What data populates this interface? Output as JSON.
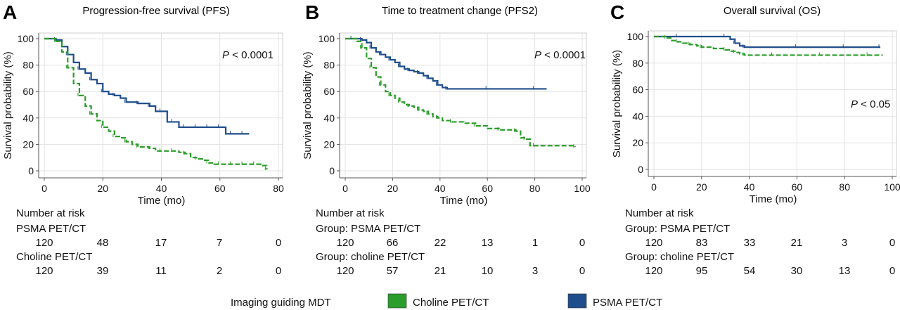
{
  "colors": {
    "choline": "#2a9d2a",
    "psma": "#1f4e8c"
  },
  "chart_data": [
    {
      "type": "line",
      "panel": "A",
      "title": "Progression-free survival (PFS)",
      "xlabel": "Time (mo)",
      "ylabel": "Survival probability (%)",
      "xlim": [
        0,
        80
      ],
      "ylim": [
        0,
        100
      ],
      "xticks": [
        0,
        20,
        40,
        60,
        80
      ],
      "yticks": [
        0,
        20,
        40,
        60,
        80,
        100
      ],
      "grid": true,
      "pvalue": {
        "p": "P",
        "rest": " < 0.0001"
      },
      "series": [
        {
          "name": "PSMA PET/CT",
          "key": "psma",
          "style": "solid",
          "x": [
            0,
            4,
            6,
            8,
            10,
            12,
            14,
            16,
            18,
            20,
            22,
            24,
            26,
            28,
            30,
            32,
            34,
            36,
            38,
            40,
            42,
            44,
            46,
            48,
            50,
            52,
            54,
            56,
            58,
            60,
            62,
            64,
            66,
            68,
            70
          ],
          "y": [
            100,
            99,
            94,
            88,
            82,
            77,
            74,
            69,
            66,
            60,
            58,
            57,
            55,
            52,
            52,
            51,
            51,
            49,
            45,
            45,
            37,
            37,
            33,
            33,
            33,
            33,
            33,
            33,
            33,
            33,
            28,
            28,
            28,
            28,
            28
          ]
        },
        {
          "name": "Choline PET/CT",
          "key": "choline",
          "style": "dashed",
          "x": [
            0,
            4,
            6,
            8,
            10,
            12,
            14,
            16,
            18,
            20,
            22,
            24,
            26,
            28,
            30,
            32,
            34,
            36,
            38,
            40,
            42,
            44,
            46,
            48,
            50,
            52,
            54,
            56,
            58,
            60,
            62,
            64,
            66,
            68,
            70,
            72,
            74,
            76
          ],
          "y": [
            100,
            98,
            90,
            78,
            66,
            57,
            49,
            43,
            38,
            33,
            30,
            26,
            25,
            22,
            20,
            18,
            18,
            17,
            15,
            15,
            15,
            15,
            14,
            13,
            10,
            9,
            8,
            6,
            5,
            5,
            5,
            5,
            5,
            5,
            5,
            5,
            4,
            1
          ]
        }
      ]
    },
    {
      "type": "line",
      "panel": "B",
      "title": "Time to treatment change (PFS2)",
      "xlabel": "Time (mo)",
      "ylabel": "Survival probability (%)",
      "xlim": [
        0,
        100
      ],
      "ylim": [
        0,
        100
      ],
      "xticks": [
        0,
        20,
        40,
        60,
        80,
        100
      ],
      "yticks": [
        0,
        20,
        40,
        60,
        80,
        100
      ],
      "grid": true,
      "pvalue": {
        "p": "P",
        "rest": " < 0.0001"
      },
      "series": [
        {
          "name": "PSMA PET/CT",
          "key": "psma",
          "style": "solid",
          "x": [
            0,
            3,
            5,
            7,
            9,
            11,
            13,
            15,
            17,
            19,
            21,
            23,
            25,
            27,
            29,
            31,
            33,
            35,
            37,
            39,
            41,
            43,
            50,
            60,
            70,
            80,
            85
          ],
          "y": [
            100,
            100,
            100,
            99,
            97,
            93,
            90,
            88,
            86,
            84,
            82,
            79,
            77,
            76,
            75,
            74,
            72,
            70,
            68,
            65,
            63,
            62,
            62,
            62,
            62,
            62,
            62
          ]
        },
        {
          "name": "Choline PET/CT",
          "key": "choline",
          "style": "dashed",
          "x": [
            0,
            3,
            5,
            7,
            9,
            11,
            13,
            15,
            17,
            19,
            21,
            23,
            25,
            27,
            29,
            31,
            33,
            35,
            37,
            39,
            41,
            45,
            50,
            55,
            60,
            65,
            70,
            72,
            74,
            76,
            78,
            80,
            90,
            97
          ],
          "y": [
            100,
            100,
            98,
            93,
            85,
            78,
            71,
            65,
            60,
            57,
            55,
            52,
            50,
            49,
            48,
            46,
            45,
            43,
            41,
            40,
            38,
            37,
            36,
            34,
            32,
            31,
            31,
            30,
            25,
            24,
            19,
            19,
            19,
            18
          ]
        }
      ]
    },
    {
      "type": "line",
      "panel": "C",
      "title": "Overall survival (OS)",
      "xlabel": "Time (mo)",
      "ylabel": "Survival probability (%)",
      "xlim": [
        0,
        100
      ],
      "ylim": [
        0,
        100
      ],
      "xticks": [
        0,
        20,
        40,
        60,
        80,
        100
      ],
      "yticks": [
        0,
        20,
        40,
        60,
        80,
        100
      ],
      "grid": true,
      "pvalue": {
        "p": "P",
        "rest": " < 0.05"
      },
      "series": [
        {
          "name": "PSMA PET/CT",
          "key": "psma",
          "style": "solid",
          "x": [
            0,
            10,
            20,
            30,
            32,
            34,
            36,
            38,
            50,
            60,
            70,
            80,
            90,
            95
          ],
          "y": [
            100,
            100,
            100,
            100,
            98,
            95,
            93,
            92,
            92,
            92,
            92,
            92,
            92,
            92
          ]
        },
        {
          "name": "Choline PET/CT",
          "key": "choline",
          "style": "dashed",
          "x": [
            0,
            5,
            7,
            10,
            12,
            15,
            18,
            20,
            25,
            30,
            32,
            34,
            36,
            38,
            40,
            50,
            60,
            70,
            80,
            90,
            96
          ],
          "y": [
            100,
            99,
            97,
            96,
            95,
            94,
            93,
            92,
            91,
            90,
            89,
            88,
            87,
            86,
            86,
            86,
            86,
            86,
            86,
            86,
            86
          ]
        }
      ]
    }
  ],
  "risk_tables": [
    {
      "heading": "Number at risk",
      "rows": [
        {
          "label": "PSMA PET/CT",
          "values": [
            "120",
            "48",
            "17",
            "7",
            "0"
          ]
        },
        {
          "label": "Choline PET/CT",
          "values": [
            "120",
            "39",
            "11",
            "2",
            "0"
          ]
        }
      ]
    },
    {
      "heading": "Number at risk",
      "rows": [
        {
          "label": "Group: PSMA PET/CT",
          "values": [
            "120",
            "66",
            "22",
            "13",
            "1",
            "0"
          ]
        },
        {
          "label": "Group: choline PET/CT",
          "values": [
            "120",
            "57",
            "21",
            "10",
            "3",
            "0"
          ]
        }
      ]
    },
    {
      "heading": "Number at risk",
      "rows": [
        {
          "label": "Group: PSMA PET/CT",
          "values": [
            "120",
            "83",
            "33",
            "21",
            "3",
            "0"
          ]
        },
        {
          "label": "Group: choline PET/CT",
          "values": [
            "120",
            "95",
            "54",
            "30",
            "13",
            "0"
          ]
        }
      ]
    }
  ],
  "legend": {
    "title": "Imaging guiding MDT",
    "items": [
      {
        "label": "Choline PET/CT",
        "key": "choline"
      },
      {
        "label": "PSMA PET/CT",
        "key": "psma"
      }
    ]
  }
}
